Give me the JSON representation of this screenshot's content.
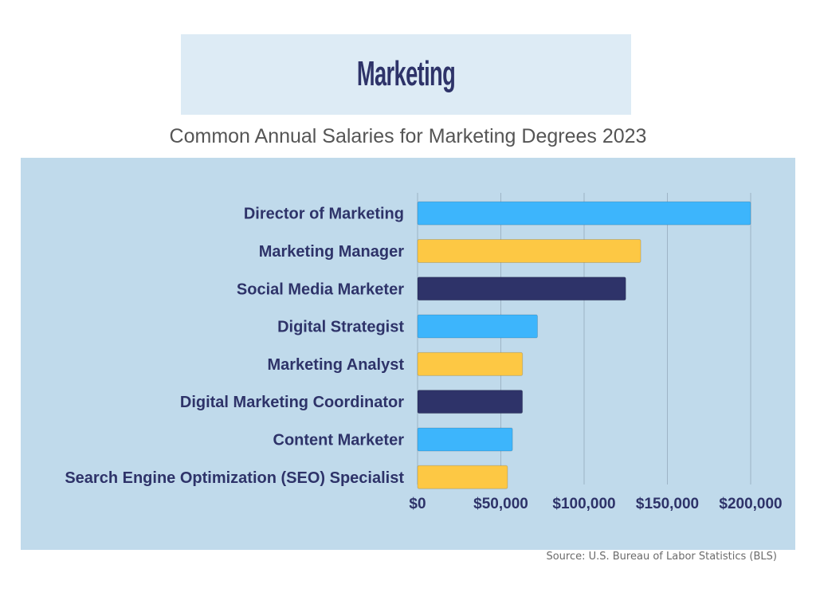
{
  "header": {
    "title": "Marketing"
  },
  "chart_data": {
    "type": "bar",
    "orientation": "horizontal",
    "title": "Common Annual Salaries for Marketing Degrees 2023",
    "categories": [
      "Director of Marketing",
      "Marketing Manager",
      "Social Media Marketer",
      "Digital Strategist",
      "Marketing Analyst",
      "Digital Marketing Coordinator",
      "Content Marketer",
      "Search Engine Optimization (SEO) Specialist"
    ],
    "values": [
      200000,
      134000,
      125000,
      72000,
      63000,
      63000,
      57000,
      54000
    ],
    "bar_colors": [
      "#3db5fc",
      "#fdc844",
      "#2e3369",
      "#3db5fc",
      "#fdc844",
      "#2e3369",
      "#3db5fc",
      "#fdc844"
    ],
    "xlim": [
      0,
      200000
    ],
    "x_tick_labels": [
      "$0",
      "$50,000",
      "$100,000",
      "$150,000",
      "$200,000"
    ],
    "x_ticks": [
      0,
      50000,
      100000,
      150000,
      200000
    ],
    "grid": true,
    "xlabel": "",
    "ylabel": ""
  },
  "source": "Source:  U.S. Bureau of Labor Statistics (BLS)",
  "colors": {
    "navy": "#2e3369",
    "blue": "#3db5fc",
    "gold": "#fdc844",
    "panel": "#c0daeb",
    "banner": "#ddebf5"
  }
}
